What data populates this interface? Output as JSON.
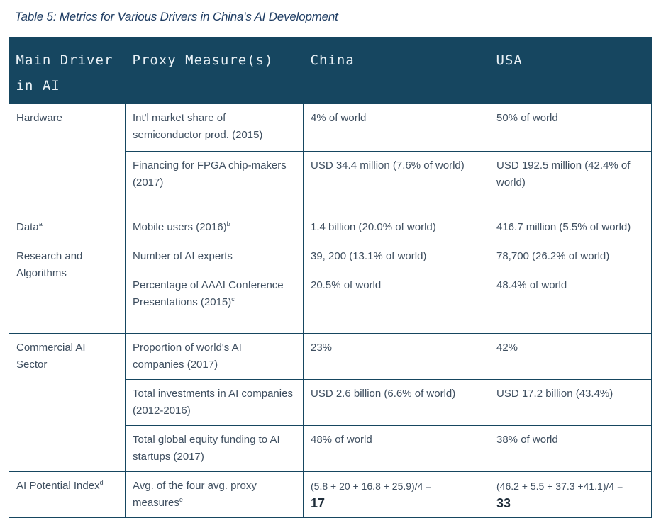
{
  "caption": "Table 5: Metrics for Various Drivers in China's AI Development",
  "headers": {
    "driver_line1": "Main Driver",
    "driver_line2": "in AI",
    "proxy": "Proxy Measure(s)",
    "china": "China",
    "usa": "USA"
  },
  "rows": {
    "hardware": {
      "driver": "Hardware",
      "m1": {
        "proxy": "Int'l market share of semiconductor prod. (2015)",
        "china": "4% of world",
        "usa": "50% of world"
      },
      "m2": {
        "proxy": "Financing for FPGA chip-makers (2017)",
        "china": "USD 34.4 million (7.6% of world)",
        "usa": "USD 192.5 million (42.4% of world)"
      }
    },
    "data": {
      "driver": "Data",
      "driver_sup": "a",
      "m1": {
        "proxy": "Mobile users (2016)",
        "proxy_sup": "b",
        "china": "1.4 billion (20.0% of world)",
        "usa": "416.7 million (5.5% of world)"
      }
    },
    "research": {
      "driver": "Research and Algorithms",
      "m1": {
        "proxy": "Number of AI experts",
        "china": "39, 200 (13.1% of world)",
        "usa": "78,700 (26.2% of world)"
      },
      "m2": {
        "proxy": "Percentage of AAAI Conference Presentations (2015)",
        "proxy_sup": "c",
        "china": "20.5% of world",
        "usa": "48.4% of world"
      }
    },
    "commercial": {
      "driver": "Commercial AI Sector",
      "m1": {
        "proxy": "Proportion of world's AI companies (2017)",
        "china": "23%",
        "usa": "42%"
      },
      "m2": {
        "proxy": "Total investments in AI companies (2012-2016)",
        "china": "USD 2.6 billion (6.6% of world)",
        "usa": "USD 17.2 billion (43.4%)"
      },
      "m3": {
        "proxy": "Total global equity funding to AI startups (2017)",
        "china": "48% of world",
        "usa": "38% of world"
      }
    },
    "index": {
      "driver": "AI Potential Index",
      "driver_sup": "d",
      "proxy": "Avg. of the four avg. proxy measures",
      "proxy_sup": "e",
      "china_formula": "(5.8 + 20 + 16.8 + 25.9)/4 =",
      "china_value": "17",
      "usa_formula": "(46.2 + 5.5 + 37.3 +41.1)/4 =",
      "usa_value": "33"
    }
  }
}
